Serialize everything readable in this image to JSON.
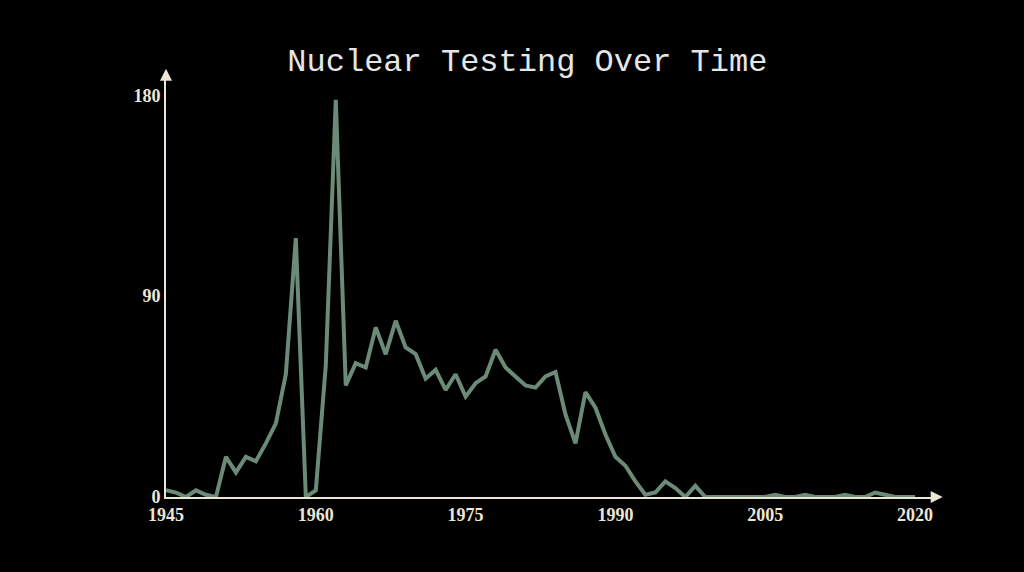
{
  "chart_data": {
    "type": "line",
    "title": "Nuclear Testing Over Time",
    "x": [
      1945,
      1946,
      1947,
      1948,
      1949,
      1950,
      1951,
      1952,
      1953,
      1954,
      1955,
      1956,
      1957,
      1958,
      1959,
      1960,
      1961,
      1962,
      1963,
      1964,
      1965,
      1966,
      1967,
      1968,
      1969,
      1970,
      1971,
      1972,
      1973,
      1974,
      1975,
      1976,
      1977,
      1978,
      1979,
      1980,
      1981,
      1982,
      1983,
      1984,
      1985,
      1986,
      1987,
      1988,
      1989,
      1990,
      1991,
      1992,
      1993,
      1994,
      1995,
      1996,
      1997,
      1998,
      1999,
      2000,
      2001,
      2002,
      2003,
      2004,
      2005,
      2006,
      2007,
      2008,
      2009,
      2010,
      2011,
      2012,
      2013,
      2014,
      2015,
      2016,
      2017,
      2018,
      2019,
      2020
    ],
    "values": [
      3,
      2,
      0,
      3,
      1,
      0,
      18,
      11,
      18,
      16,
      24,
      33,
      55,
      116,
      0,
      3,
      59,
      178,
      50,
      60,
      58,
      76,
      64,
      79,
      67,
      64,
      53,
      57,
      48,
      55,
      45,
      51,
      54,
      66,
      58,
      54,
      50,
      49,
      54,
      56,
      37,
      24,
      47,
      40,
      28,
      18,
      14,
      7,
      1,
      2,
      7,
      4,
      0,
      5,
      0,
      0,
      0,
      0,
      0,
      0,
      0,
      1,
      0,
      0,
      1,
      0,
      0,
      0,
      1,
      0,
      0,
      2,
      1,
      0,
      0,
      0
    ],
    "color": "#6b8a78",
    "xlim": [
      1945,
      2022
    ],
    "xticks": [
      1945,
      1960,
      1975,
      1990,
      2005,
      2020
    ],
    "ylim": [
      0,
      190
    ],
    "yticks": [
      0,
      90,
      180
    ],
    "grid": false
  }
}
